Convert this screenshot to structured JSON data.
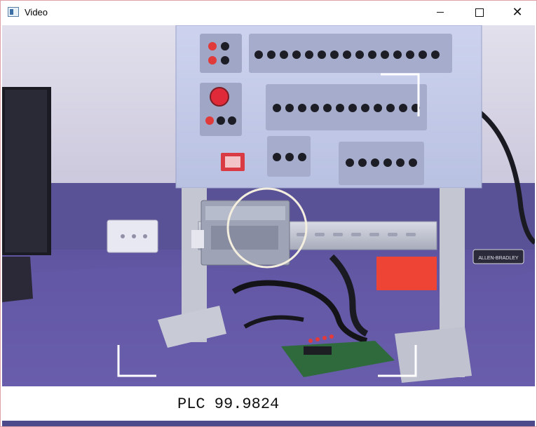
{
  "window": {
    "title": "Video"
  },
  "controls": {
    "minimize": "minimize",
    "maximize": "maximize",
    "close": "close"
  },
  "video": {
    "caption": "PLC 99.9824",
    "label_plate": "ALLEN-BRADLEY",
    "colors": {
      "wall": "#d9d7e6",
      "floor": "#6a5fa8",
      "panel": "#c2c9e6",
      "frame": "#c9ccd6",
      "red": "#e03a3a",
      "accent_box": "#f04a3a"
    }
  }
}
